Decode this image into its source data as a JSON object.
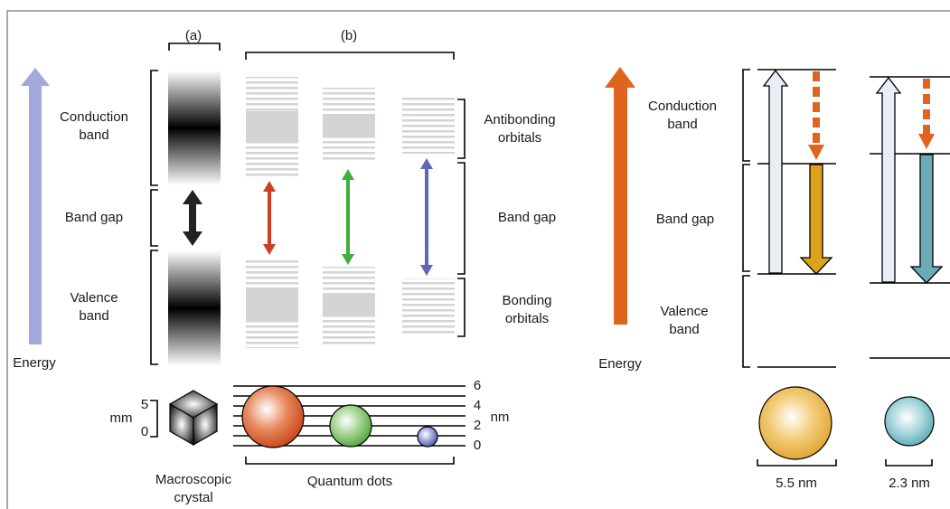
{
  "left_panel": {
    "panel_labels": {
      "a": "(a)",
      "b": "(b)"
    },
    "bands": {
      "conduction": [
        "Conduction",
        "band"
      ],
      "band_gap": "Band gap",
      "valence": [
        "Valence",
        "band"
      ]
    },
    "energy": "Energy",
    "orbitals": {
      "antibonding": [
        "Antibonding",
        "orbitals"
      ],
      "band_gap": "Band gap",
      "bonding": [
        "Bonding",
        "orbitals"
      ]
    },
    "mm_scale": {
      "unit": "mm",
      "ticks": [
        5,
        0
      ]
    },
    "nm_scale": {
      "unit": "nm",
      "ticks": [
        6,
        4,
        2,
        0
      ]
    },
    "captions": {
      "crystal": [
        "Macroscopic",
        "crystal"
      ],
      "dots": "Quantum dots"
    }
  },
  "right_panel": {
    "bands": {
      "conduction": [
        "Conduction",
        "band"
      ],
      "band_gap": "Band gap",
      "valence": [
        "Valence",
        "band"
      ]
    },
    "energy": "Energy",
    "sizes": [
      "5.5 nm",
      "2.3 nm"
    ]
  }
}
